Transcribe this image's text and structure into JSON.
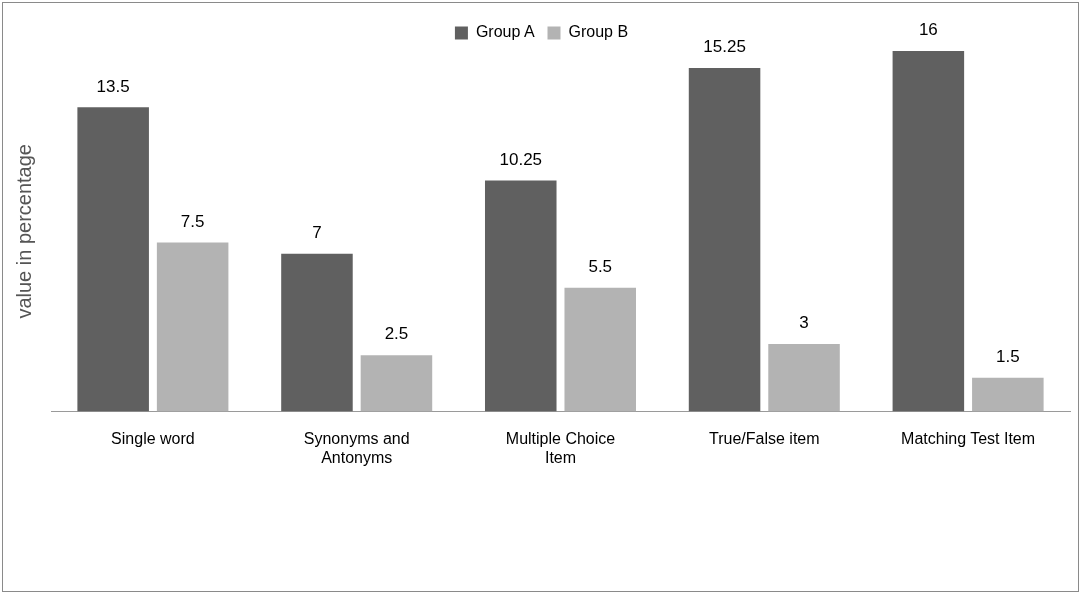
{
  "chart_data": {
    "type": "bar",
    "ylabel": "value in percentage",
    "categories": [
      "Single word",
      "Synonyms and Antonyms",
      "Multiple Choice Item",
      "True/False item",
      "Matching Test Item"
    ],
    "series": [
      {
        "name": "Group A",
        "color": "#606060",
        "values": [
          13.5,
          7,
          10.25,
          15.25,
          16
        ]
      },
      {
        "name": "Group B",
        "color": "#b3b3b3",
        "values": [
          7.5,
          2.5,
          5.5,
          3,
          1.5
        ]
      }
    ],
    "data_labels": true,
    "legend": "top",
    "grid": false,
    "tick_labels": "x"
  }
}
